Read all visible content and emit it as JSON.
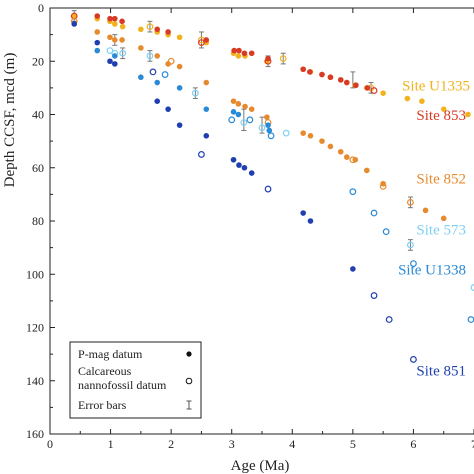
{
  "chart_data": {
    "type": "scatter",
    "xlabel": "Age (Ma)",
    "ylabel": "Depth CCSF, mcd (m)",
    "xlim": [
      0,
      7
    ],
    "ylim": [
      0,
      160
    ],
    "y_inverted": true,
    "x_ticks": [
      "0",
      "1",
      "2",
      "3",
      "4",
      "5",
      "6",
      "7"
    ],
    "y_ticks": [
      "0",
      "20",
      "40",
      "60",
      "80",
      "100",
      "120",
      "140",
      "160"
    ],
    "grid": false,
    "legend": {
      "position": "bottom-left",
      "entries": [
        {
          "label": "P-mag datum",
          "marker": "filled-circle"
        },
        {
          "label": "Calcareous nannofossil datum",
          "marker": "open-circle"
        },
        {
          "label": "Error bars",
          "marker": "error-bar"
        }
      ]
    },
    "series": [
      {
        "name": "Site U1335",
        "color": "#f2b21d",
        "points": [
          [
            0.4,
            3,
            "p"
          ],
          [
            0.78,
            4,
            "p"
          ],
          [
            0.99,
            5,
            "p"
          ],
          [
            1.07,
            6,
            "p"
          ],
          [
            1.2,
            7,
            "p"
          ],
          [
            1.5,
            8,
            "p"
          ],
          [
            1.77,
            9,
            "p"
          ],
          [
            1.95,
            10,
            "p"
          ],
          [
            2.14,
            11,
            "p"
          ],
          [
            2.58,
            13,
            "p"
          ],
          [
            3.03,
            17,
            "p"
          ],
          [
            3.11,
            18,
            "p"
          ],
          [
            3.22,
            18,
            "p"
          ],
          [
            3.58,
            20,
            "p"
          ],
          [
            4.18,
            23,
            "p"
          ],
          [
            4.3,
            24,
            "p"
          ],
          [
            4.49,
            25,
            "p"
          ],
          [
            4.63,
            26,
            "p"
          ],
          [
            4.8,
            27,
            "p"
          ],
          [
            4.9,
            28,
            "p"
          ],
          [
            5.04,
            29,
            "p"
          ],
          [
            5.23,
            30,
            "p"
          ],
          [
            5.5,
            32,
            "p"
          ],
          [
            5.9,
            34,
            "p"
          ],
          [
            6.14,
            35,
            "p"
          ],
          [
            6.5,
            38,
            "p"
          ],
          [
            6.9,
            40,
            "p"
          ],
          [
            1.65,
            7,
            "n"
          ],
          [
            2.5,
            12,
            "n"
          ],
          [
            3.85,
            19,
            "n"
          ],
          [
            5.3,
            30,
            "n"
          ]
        ]
      },
      {
        "name": "Site 853",
        "color": "#d93a25",
        "points": [
          [
            0.78,
            3,
            "p"
          ],
          [
            0.99,
            4,
            "p"
          ],
          [
            1.07,
            4,
            "p"
          ],
          [
            1.19,
            5,
            "p"
          ],
          [
            1.77,
            8,
            "p"
          ],
          [
            1.95,
            9,
            "p"
          ],
          [
            2.58,
            12,
            "p"
          ],
          [
            3.04,
            16,
            "p"
          ],
          [
            3.12,
            16,
            "p"
          ],
          [
            3.21,
            17,
            "p"
          ],
          [
            3.33,
            17,
            "p"
          ],
          [
            3.6,
            19,
            "p"
          ],
          [
            4.18,
            23,
            "p"
          ],
          [
            4.29,
            24,
            "p"
          ],
          [
            4.49,
            25,
            "p"
          ],
          [
            4.63,
            26,
            "p"
          ],
          [
            4.8,
            27,
            "p"
          ],
          [
            4.9,
            28,
            "p"
          ],
          [
            5.05,
            29,
            "p"
          ],
          [
            5.24,
            30,
            "p"
          ],
          [
            0.4,
            3,
            "n"
          ],
          [
            2.5,
            13,
            "n"
          ],
          [
            3.6,
            20,
            "n"
          ],
          [
            5.35,
            31,
            "n"
          ]
        ]
      },
      {
        "name": "Site 852",
        "color": "#e68a2e",
        "points": [
          [
            0.78,
            9,
            "p"
          ],
          [
            0.99,
            11,
            "p"
          ],
          [
            1.07,
            12,
            "p"
          ],
          [
            1.19,
            12,
            "p"
          ],
          [
            1.5,
            15,
            "p"
          ],
          [
            1.77,
            18,
            "p"
          ],
          [
            1.95,
            21,
            "p"
          ],
          [
            2.14,
            22,
            "p"
          ],
          [
            2.58,
            28,
            "p"
          ],
          [
            3.03,
            35,
            "p"
          ],
          [
            3.11,
            36,
            "p"
          ],
          [
            3.22,
            37,
            "p"
          ],
          [
            3.33,
            38,
            "p"
          ],
          [
            3.58,
            41,
            "p"
          ],
          [
            4.18,
            47,
            "p"
          ],
          [
            4.3,
            48,
            "p"
          ],
          [
            4.49,
            50,
            "p"
          ],
          [
            4.63,
            52,
            "p"
          ],
          [
            4.8,
            54,
            "p"
          ],
          [
            4.9,
            56,
            "p"
          ],
          [
            5.04,
            57,
            "p"
          ],
          [
            5.23,
            61,
            "p"
          ],
          [
            5.5,
            66,
            "p"
          ],
          [
            6.2,
            76,
            "p"
          ],
          [
            6.5,
            79,
            "p"
          ],
          [
            0.4,
            5,
            "n"
          ],
          [
            2.0,
            20,
            "n"
          ],
          [
            3.6,
            43,
            "n"
          ],
          [
            5.0,
            57,
            "n"
          ],
          [
            5.5,
            67,
            "n"
          ],
          [
            5.95,
            73,
            "n"
          ]
        ]
      },
      {
        "name": "Site 573",
        "color": "#7fd0f2",
        "points": [
          [
            0.99,
            16,
            "n"
          ],
          [
            1.07,
            17,
            "n"
          ],
          [
            1.2,
            17,
            "n"
          ],
          [
            1.65,
            18,
            "n"
          ],
          [
            2.4,
            32,
            "n"
          ],
          [
            3.2,
            43,
            "n"
          ],
          [
            3.5,
            45,
            "n"
          ],
          [
            3.9,
            47,
            "n"
          ],
          [
            5.95,
            89,
            "n"
          ],
          [
            7.0,
            105,
            "n"
          ]
        ]
      },
      {
        "name": "Site U1338",
        "color": "#2a8ad6",
        "points": [
          [
            0.78,
            16,
            "p"
          ],
          [
            1.07,
            18,
            "p"
          ],
          [
            1.5,
            26,
            "p"
          ],
          [
            1.77,
            28,
            "p"
          ],
          [
            2.14,
            30,
            "p"
          ],
          [
            2.58,
            38,
            "p"
          ],
          [
            3.03,
            39,
            "p"
          ],
          [
            3.11,
            40,
            "p"
          ],
          [
            3.6,
            44,
            "p"
          ],
          [
            3.62,
            46,
            "p"
          ],
          [
            5.0,
            69,
            "n"
          ],
          [
            5.35,
            77,
            "n"
          ],
          [
            5.55,
            84,
            "n"
          ],
          [
            6.0,
            96,
            "n"
          ],
          [
            6.95,
            117,
            "n"
          ],
          [
            3.0,
            42,
            "n"
          ],
          [
            3.3,
            42,
            "n"
          ],
          [
            3.65,
            48,
            "n"
          ],
          [
            1.9,
            25,
            "n"
          ]
        ]
      },
      {
        "name": "Site 851",
        "color": "#1f3fb0",
        "points": [
          [
            0.4,
            6,
            "p"
          ],
          [
            0.78,
            13,
            "p"
          ],
          [
            0.99,
            20,
            "p"
          ],
          [
            1.07,
            21,
            "p"
          ],
          [
            1.77,
            35,
            "p"
          ],
          [
            1.95,
            38,
            "p"
          ],
          [
            2.14,
            44,
            "p"
          ],
          [
            2.58,
            48,
            "p"
          ],
          [
            3.03,
            57,
            "p"
          ],
          [
            3.12,
            59,
            "p"
          ],
          [
            3.21,
            60,
            "p"
          ],
          [
            3.33,
            62,
            "p"
          ],
          [
            4.18,
            77,
            "p"
          ],
          [
            4.3,
            80,
            "p"
          ],
          [
            5.0,
            98,
            "p"
          ],
          [
            1.7,
            24,
            "n"
          ],
          [
            2.5,
            55,
            "n"
          ],
          [
            3.6,
            68,
            "n"
          ],
          [
            5.35,
            108,
            "n"
          ],
          [
            5.6,
            117,
            "n"
          ],
          [
            6.0,
            132,
            "n"
          ]
        ]
      }
    ],
    "error_bars": [
      [
        0.4,
        3,
        2
      ],
      [
        1.65,
        7,
        2
      ],
      [
        2.5,
        12,
        3
      ],
      [
        3.6,
        20,
        2
      ],
      [
        3.85,
        19,
        2
      ],
      [
        5.0,
        27,
        3
      ],
      [
        5.3,
        30,
        2
      ],
      [
        1.2,
        17,
        2
      ],
      [
        1.65,
        18,
        2
      ],
      [
        2.4,
        32,
        2
      ],
      [
        3.2,
        42,
        4
      ],
      [
        3.5,
        44,
        3
      ],
      [
        5.95,
        73,
        2
      ],
      [
        5.95,
        89,
        2
      ],
      [
        1.07,
        12,
        2
      ]
    ],
    "series_label_colors": [
      "#f2b21d",
      "#d93a25",
      "#e68a2e",
      "#7fd0f2",
      "#2a8ad6",
      "#1f3fb0"
    ]
  }
}
